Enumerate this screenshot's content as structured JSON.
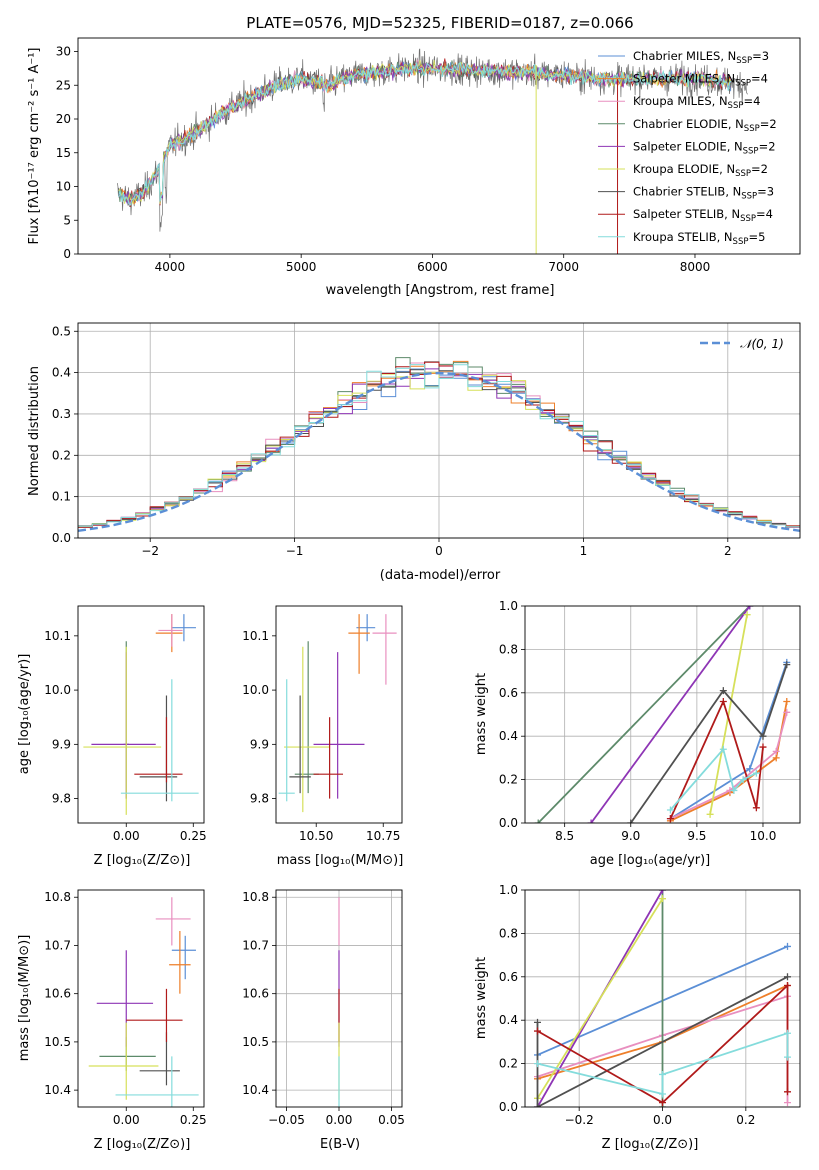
{
  "colors": [
    "#5b8fd6",
    "#ee7f2a",
    "#e88fbf",
    "#5d8a6a",
    "#8e35b5",
    "#d6e05a",
    "#505050",
    "#b01a1a",
    "#84dcdc"
  ],
  "chart_data": [
    {
      "id": "spectrum",
      "type": "line",
      "title": "PLATE=0576, MJD=52325, FIBERID=0187, z=0.066",
      "xlabel": "wavelength [Angstrom, rest frame]",
      "ylabel": "Flux [fλ10⁻¹⁷ erg cm⁻² s⁻¹ A⁻¹]",
      "xlim": [
        3300,
        8800
      ],
      "ylim": [
        0,
        32
      ],
      "xticks": [
        4000,
        5000,
        6000,
        7000,
        8000
      ],
      "yticks": [
        0,
        5,
        10,
        15,
        20,
        25,
        30
      ],
      "x_range": [
        3600,
        8400
      ],
      "continuum_knots": [
        [
          3600,
          9
        ],
        [
          3700,
          8
        ],
        [
          3800,
          9
        ],
        [
          3900,
          12
        ],
        [
          4000,
          16
        ],
        [
          4200,
          18
        ],
        [
          4400,
          21
        ],
        [
          4600,
          23
        ],
        [
          4800,
          25
        ],
        [
          5000,
          26
        ],
        [
          5200,
          25
        ],
        [
          5400,
          26.5
        ],
        [
          5600,
          27
        ],
        [
          5800,
          27.5
        ],
        [
          6000,
          27.5
        ],
        [
          6300,
          27.2
        ],
        [
          6600,
          27
        ],
        [
          7000,
          26.5
        ],
        [
          7300,
          26
        ],
        [
          7600,
          26
        ],
        [
          8000,
          26
        ],
        [
          8400,
          25
        ]
      ],
      "legend": [
        {
          "name": "Chabrier MILES, N_SSP=3",
          "pre": "Chabrier MILES, N",
          "sub": "SSP",
          "post": "=3"
        },
        {
          "name": "Salpeter MILES, N_SSP=4",
          "pre": "Salpeter MILES, N",
          "sub": "SSP",
          "post": "=4"
        },
        {
          "name": "Kroupa MILES, N_SSP=4",
          "pre": "Kroupa MILES, N",
          "sub": "SSP",
          "post": "=4"
        },
        {
          "name": "Chabrier ELODIE, N_SSP=2",
          "pre": "Chabrier ELODIE, N",
          "sub": "SSP",
          "post": "=2"
        },
        {
          "name": "Salpeter ELODIE, N_SSP=2",
          "pre": "Salpeter ELODIE, N",
          "sub": "SSP",
          "post": "=2"
        },
        {
          "name": "Kroupa ELODIE, N_SSP=2",
          "pre": "Kroupa ELODIE, N",
          "sub": "SSP",
          "post": "=2"
        },
        {
          "name": "Chabrier STELIB, N_SSP=3",
          "pre": "Chabrier STELIB, N",
          "sub": "SSP",
          "post": "=3"
        },
        {
          "name": "Salpeter STELIB, N_SSP=4",
          "pre": "Salpeter STELIB, N",
          "sub": "SSP",
          "post": "=4"
        },
        {
          "name": "Kroupa STELIB, N_SSP=5",
          "pre": "Kroupa STELIB, N",
          "sub": "SSP",
          "post": "=5"
        }
      ],
      "legend_placement": "upper-right"
    },
    {
      "id": "residuals",
      "type": "histogram",
      "xlabel": "(data-model)/error",
      "ylabel": "Normed distribution",
      "xlim": [
        -2.5,
        2.5
      ],
      "ylim": [
        0,
        0.52
      ],
      "xticks": [
        -2,
        -1,
        0,
        1,
        2
      ],
      "xtick_labels": [
        "−2",
        "−1",
        "0",
        "1",
        "2"
      ],
      "yticks": [
        0.0,
        0.1,
        0.2,
        0.3,
        0.4,
        0.5
      ],
      "ytick_labels": [
        "0.0",
        "0.1",
        "0.2",
        "0.3",
        "0.4",
        "0.5"
      ],
      "bin_width": 0.1,
      "grid": true,
      "reference_label": "𝒩(0, 1)",
      "reference_color": "#5b8fd6",
      "legend_placement": "upper-right"
    },
    {
      "id": "age-vs-Z",
      "type": "errorbar",
      "xlabel": "Z [log₁₀(Z/Z⊙)]",
      "ylabel": "age  [log₁₀(age/yr)]",
      "xlim": [
        -0.18,
        0.29
      ],
      "ylim": [
        9.755,
        10.155
      ],
      "xticks": [
        0.0,
        0.25
      ],
      "xtick_labels": [
        "0.00",
        "0.25"
      ],
      "yticks": [
        9.8,
        9.9,
        10.0,
        10.1
      ],
      "ytick_labels": [
        "9.8",
        "9.9",
        "10.0",
        "10.1"
      ],
      "points": [
        {
          "c": 0,
          "x": 0.215,
          "y": 10.115,
          "xe": [
            0.17,
            0.26
          ],
          "ye": [
            10.09,
            10.14
          ]
        },
        {
          "c": 1,
          "x": 0.17,
          "y": 10.105,
          "xe": [
            0.11,
            0.21
          ],
          "ye": [
            10.07,
            10.14
          ]
        },
        {
          "c": 2,
          "x": 0.17,
          "y": 10.11,
          "xe": [
            0.12,
            0.21
          ],
          "ye": [
            10.08,
            10.14
          ]
        },
        {
          "c": 3,
          "x": 0.0,
          "y": 9.9,
          "xe": [
            -0.01,
            0.01
          ],
          "ye": [
            9.8,
            10.09
          ]
        },
        {
          "c": 4,
          "x": 0.0,
          "y": 9.9,
          "xe": [
            -0.13,
            0.11
          ],
          "ye": [
            9.8,
            10.07
          ]
        },
        {
          "c": 5,
          "x": 0.0,
          "y": 9.895,
          "xe": [
            -0.16,
            0.13
          ],
          "ye": [
            9.77,
            10.08
          ]
        },
        {
          "c": 6,
          "x": 0.15,
          "y": 9.84,
          "xe": [
            0.05,
            0.19
          ],
          "ye": [
            9.795,
            9.99
          ]
        },
        {
          "c": 7,
          "x": 0.15,
          "y": 9.845,
          "xe": [
            0.03,
            0.21
          ],
          "ye": [
            9.83,
            9.95
          ]
        },
        {
          "c": 8,
          "x": 0.17,
          "y": 9.81,
          "xe": [
            -0.02,
            0.27
          ],
          "ye": [
            9.795,
            10.02
          ]
        }
      ]
    },
    {
      "id": "age-vs-mass",
      "type": "errorbar",
      "xlabel": "mass [log₁₀(M/M⊙)]",
      "ylabel": "",
      "xlim": [
        10.35,
        10.82
      ],
      "ylim": [
        9.755,
        10.155
      ],
      "xticks": [
        10.5,
        10.75
      ],
      "xtick_labels": [
        "10.50",
        "10.75"
      ],
      "yticks": [
        9.8,
        9.9,
        10.0,
        10.1
      ],
      "ytick_labels": [
        "9.8",
        "9.9",
        "10.0",
        "10.1"
      ],
      "points": [
        {
          "c": 0,
          "x": 10.69,
          "y": 10.115,
          "xe": [
            10.65,
            10.72
          ],
          "ye": [
            10.09,
            10.14
          ]
        },
        {
          "c": 1,
          "x": 10.66,
          "y": 10.105,
          "xe": [
            10.62,
            10.7
          ],
          "ye": [
            10.03,
            10.14
          ]
        },
        {
          "c": 2,
          "x": 10.76,
          "y": 10.105,
          "xe": [
            10.71,
            10.8
          ],
          "ye": [
            10.01,
            10.14
          ]
        },
        {
          "c": 3,
          "x": 10.47,
          "y": 9.845,
          "xe": [
            10.42,
            10.51
          ],
          "ye": [
            9.81,
            10.09
          ]
        },
        {
          "c": 4,
          "x": 10.58,
          "y": 9.9,
          "xe": [
            10.49,
            10.68
          ],
          "ye": [
            9.8,
            10.07
          ]
        },
        {
          "c": 5,
          "x": 10.45,
          "y": 9.895,
          "xe": [
            10.38,
            10.55
          ],
          "ye": [
            9.775,
            10.08
          ]
        },
        {
          "c": 6,
          "x": 10.44,
          "y": 9.84,
          "xe": [
            10.4,
            10.48
          ],
          "ye": [
            9.81,
            9.99
          ]
        },
        {
          "c": 7,
          "x": 10.55,
          "y": 9.845,
          "xe": [
            10.49,
            10.6
          ],
          "ye": [
            9.8,
            9.95
          ]
        },
        {
          "c": 8,
          "x": 10.39,
          "y": 9.81,
          "xe": [
            10.36,
            10.42
          ],
          "ye": [
            9.795,
            10.02
          ]
        }
      ]
    },
    {
      "id": "weight-vs-age",
      "type": "line",
      "xlabel": "age  [log₁₀(age/yr)]",
      "ylabel": "mass weight",
      "xlim": [
        8.2,
        10.28
      ],
      "ylim": [
        0,
        1
      ],
      "xticks": [
        8.5,
        9.0,
        9.5,
        10.0
      ],
      "xtick_labels": [
        "8.5",
        "9.0",
        "9.5",
        "10.0"
      ],
      "yticks": [
        0,
        0.2,
        0.4,
        0.6,
        0.8,
        1.0
      ],
      "ytick_labels": [
        "0.0",
        "0.2",
        "0.4",
        "0.6",
        "0.8",
        "1.0"
      ],
      "grid": true,
      "series": [
        {
          "c": 0,
          "points": [
            [
              9.3,
              0.02
            ],
            [
              9.9,
              0.25
            ],
            [
              10.18,
              0.74
            ]
          ]
        },
        {
          "c": 1,
          "points": [
            [
              9.3,
              0.01
            ],
            [
              9.75,
              0.14
            ],
            [
              10.1,
              0.3
            ],
            [
              10.18,
              0.56
            ]
          ]
        },
        {
          "c": 2,
          "points": [
            [
              9.3,
              0.02
            ],
            [
              9.75,
              0.15
            ],
            [
              10.1,
              0.33
            ],
            [
              10.18,
              0.51
            ]
          ]
        },
        {
          "c": 3,
          "points": [
            [
              8.3,
              0.0
            ],
            [
              9.9,
              1.0
            ]
          ]
        },
        {
          "c": 4,
          "points": [
            [
              8.7,
              0.0
            ],
            [
              9.9,
              1.0
            ]
          ]
        },
        {
          "c": 5,
          "points": [
            [
              9.6,
              0.04
            ],
            [
              9.88,
              0.96
            ]
          ]
        },
        {
          "c": 6,
          "points": [
            [
              9.0,
              0.0
            ],
            [
              9.7,
              0.61
            ],
            [
              10.0,
              0.4
            ],
            [
              10.18,
              0.73
            ]
          ]
        },
        {
          "c": 7,
          "points": [
            [
              9.3,
              0.02
            ],
            [
              9.7,
              0.56
            ],
            [
              9.95,
              0.07
            ],
            [
              10.0,
              0.35
            ]
          ]
        },
        {
          "c": 8,
          "points": [
            [
              9.3,
              0.06
            ],
            [
              9.7,
              0.34
            ],
            [
              9.78,
              0.15
            ],
            [
              9.85,
              0.2
            ],
            [
              9.95,
              0.23
            ]
          ]
        }
      ]
    },
    {
      "id": "mass-vs-Z",
      "type": "errorbar",
      "xlabel": "Z [log₁₀(Z/Z⊙)]",
      "ylabel": "mass [log₁₀(M/M⊙)]",
      "xlim": [
        -0.18,
        0.29
      ],
      "ylim": [
        10.365,
        10.815
      ],
      "xticks": [
        0.0,
        0.25
      ],
      "xtick_labels": [
        "0.00",
        "0.25"
      ],
      "yticks": [
        10.4,
        10.5,
        10.6,
        10.7,
        10.8
      ],
      "ytick_labels": [
        "10.4",
        "10.5",
        "10.6",
        "10.7",
        "10.8"
      ],
      "points": [
        {
          "c": 0,
          "x": 0.22,
          "y": 10.69,
          "xe": [
            0.17,
            0.26
          ],
          "ye": [
            10.63,
            10.72
          ]
        },
        {
          "c": 1,
          "x": 0.2,
          "y": 10.66,
          "xe": [
            0.16,
            0.24
          ],
          "ye": [
            10.6,
            10.73
          ]
        },
        {
          "c": 2,
          "x": 0.17,
          "y": 10.755,
          "xe": [
            0.11,
            0.24
          ],
          "ye": [
            10.7,
            10.8
          ]
        },
        {
          "c": 3,
          "x": 0.0,
          "y": 10.47,
          "xe": [
            -0.1,
            0.11
          ],
          "ye": [
            10.44,
            10.51
          ]
        },
        {
          "c": 4,
          "x": 0.0,
          "y": 10.58,
          "xe": [
            -0.11,
            0.1
          ],
          "ye": [
            10.49,
            10.69
          ]
        },
        {
          "c": 5,
          "x": 0.0,
          "y": 10.45,
          "xe": [
            -0.14,
            0.12
          ],
          "ye": [
            10.38,
            10.54
          ]
        },
        {
          "c": 6,
          "x": 0.15,
          "y": 10.44,
          "xe": [
            0.05,
            0.2
          ],
          "ye": [
            10.41,
            10.52
          ]
        },
        {
          "c": 7,
          "x": 0.15,
          "y": 10.545,
          "xe": [
            0.0,
            0.21
          ],
          "ye": [
            10.5,
            10.61
          ]
        },
        {
          "c": 8,
          "x": 0.17,
          "y": 10.39,
          "xe": [
            -0.04,
            0.27
          ],
          "ye": [
            10.36,
            10.47
          ]
        }
      ]
    },
    {
      "id": "mass-vs-ebv",
      "type": "errorbar",
      "xlabel": "E(B-V)",
      "ylabel": "",
      "xlim": [
        -0.06,
        0.06
      ],
      "ylim": [
        10.365,
        10.815
      ],
      "xticks": [
        -0.05,
        0.0,
        0.05
      ],
      "xtick_labels": [
        "−0.05",
        "0.00",
        "0.05"
      ],
      "yticks": [
        10.4,
        10.5,
        10.6,
        10.7,
        10.8
      ],
      "ytick_labels": [
        "10.4",
        "10.5",
        "10.6",
        "10.7",
        "10.8"
      ],
      "grid": true,
      "points": [
        {
          "c": 2,
          "x": 0.0,
          "y": 10.755,
          "xe": [
            0,
            0
          ],
          "ye": [
            10.7,
            10.8
          ]
        },
        {
          "c": 4,
          "x": 0.0,
          "y": 10.58,
          "xe": [
            0,
            0
          ],
          "ye": [
            10.49,
            10.69
          ]
        },
        {
          "c": 7,
          "x": 0.0,
          "y": 10.545,
          "xe": [
            0,
            0
          ],
          "ye": [
            10.5,
            10.61
          ]
        },
        {
          "c": 5,
          "x": 0.0,
          "y": 10.45,
          "xe": [
            0,
            0
          ],
          "ye": [
            10.38,
            10.54
          ]
        },
        {
          "c": 8,
          "x": 0.0,
          "y": 10.39,
          "xe": [
            0,
            0
          ],
          "ye": [
            10.36,
            10.47
          ]
        }
      ]
    },
    {
      "id": "weight-vs-Z",
      "type": "line",
      "xlabel": "Z [log₁₀(Z/Z⊙)]",
      "ylabel": "mass weight",
      "xlim": [
        -0.33,
        0.33
      ],
      "ylim": [
        0,
        1
      ],
      "xticks": [
        -0.2,
        0.0,
        0.2
      ],
      "xtick_labels": [
        "−0.2",
        "0.0",
        "0.2"
      ],
      "yticks": [
        0,
        0.2,
        0.4,
        0.6,
        0.8,
        1.0
      ],
      "ytick_labels": [
        "0.0",
        "0.2",
        "0.4",
        "0.6",
        "0.8",
        "1.0"
      ],
      "grid": true,
      "series": [
        {
          "c": 0,
          "points": [
            [
              -0.3,
              0.24
            ],
            [
              0.3,
              0.74
            ]
          ]
        },
        {
          "c": 1,
          "points": [
            [
              -0.3,
              0.13
            ],
            [
              0.0,
              0.3
            ],
            [
              0.3,
              0.56
            ]
          ]
        },
        {
          "c": 2,
          "points": [
            [
              -0.3,
              0.14
            ],
            [
              0.0,
              0.33
            ],
            [
              0.3,
              0.51
            ],
            [
              0.3,
              0.02
            ]
          ]
        },
        {
          "c": 3,
          "points": [
            [
              0.0,
              0.0
            ],
            [
              0.0,
              1.0
            ]
          ]
        },
        {
          "c": 4,
          "points": [
            [
              -0.3,
              0.0
            ],
            [
              0.0,
              1.0
            ]
          ]
        },
        {
          "c": 5,
          "points": [
            [
              -0.3,
              0.04
            ],
            [
              0.0,
              0.96
            ]
          ]
        },
        {
          "c": 6,
          "points": [
            [
              -0.3,
              0.39
            ],
            [
              -0.3,
              0.0
            ],
            [
              0.3,
              0.6
            ]
          ]
        },
        {
          "c": 7,
          "points": [
            [
              -0.3,
              0.35
            ],
            [
              0.0,
              0.02
            ],
            [
              0.3,
              0.56
            ],
            [
              0.3,
              0.07
            ]
          ]
        },
        {
          "c": 8,
          "points": [
            [
              -0.3,
              0.2
            ],
            [
              0.0,
              0.06
            ],
            [
              0.0,
              0.15
            ],
            [
              0.3,
              0.34
            ],
            [
              0.3,
              0.23
            ]
          ]
        }
      ]
    }
  ]
}
